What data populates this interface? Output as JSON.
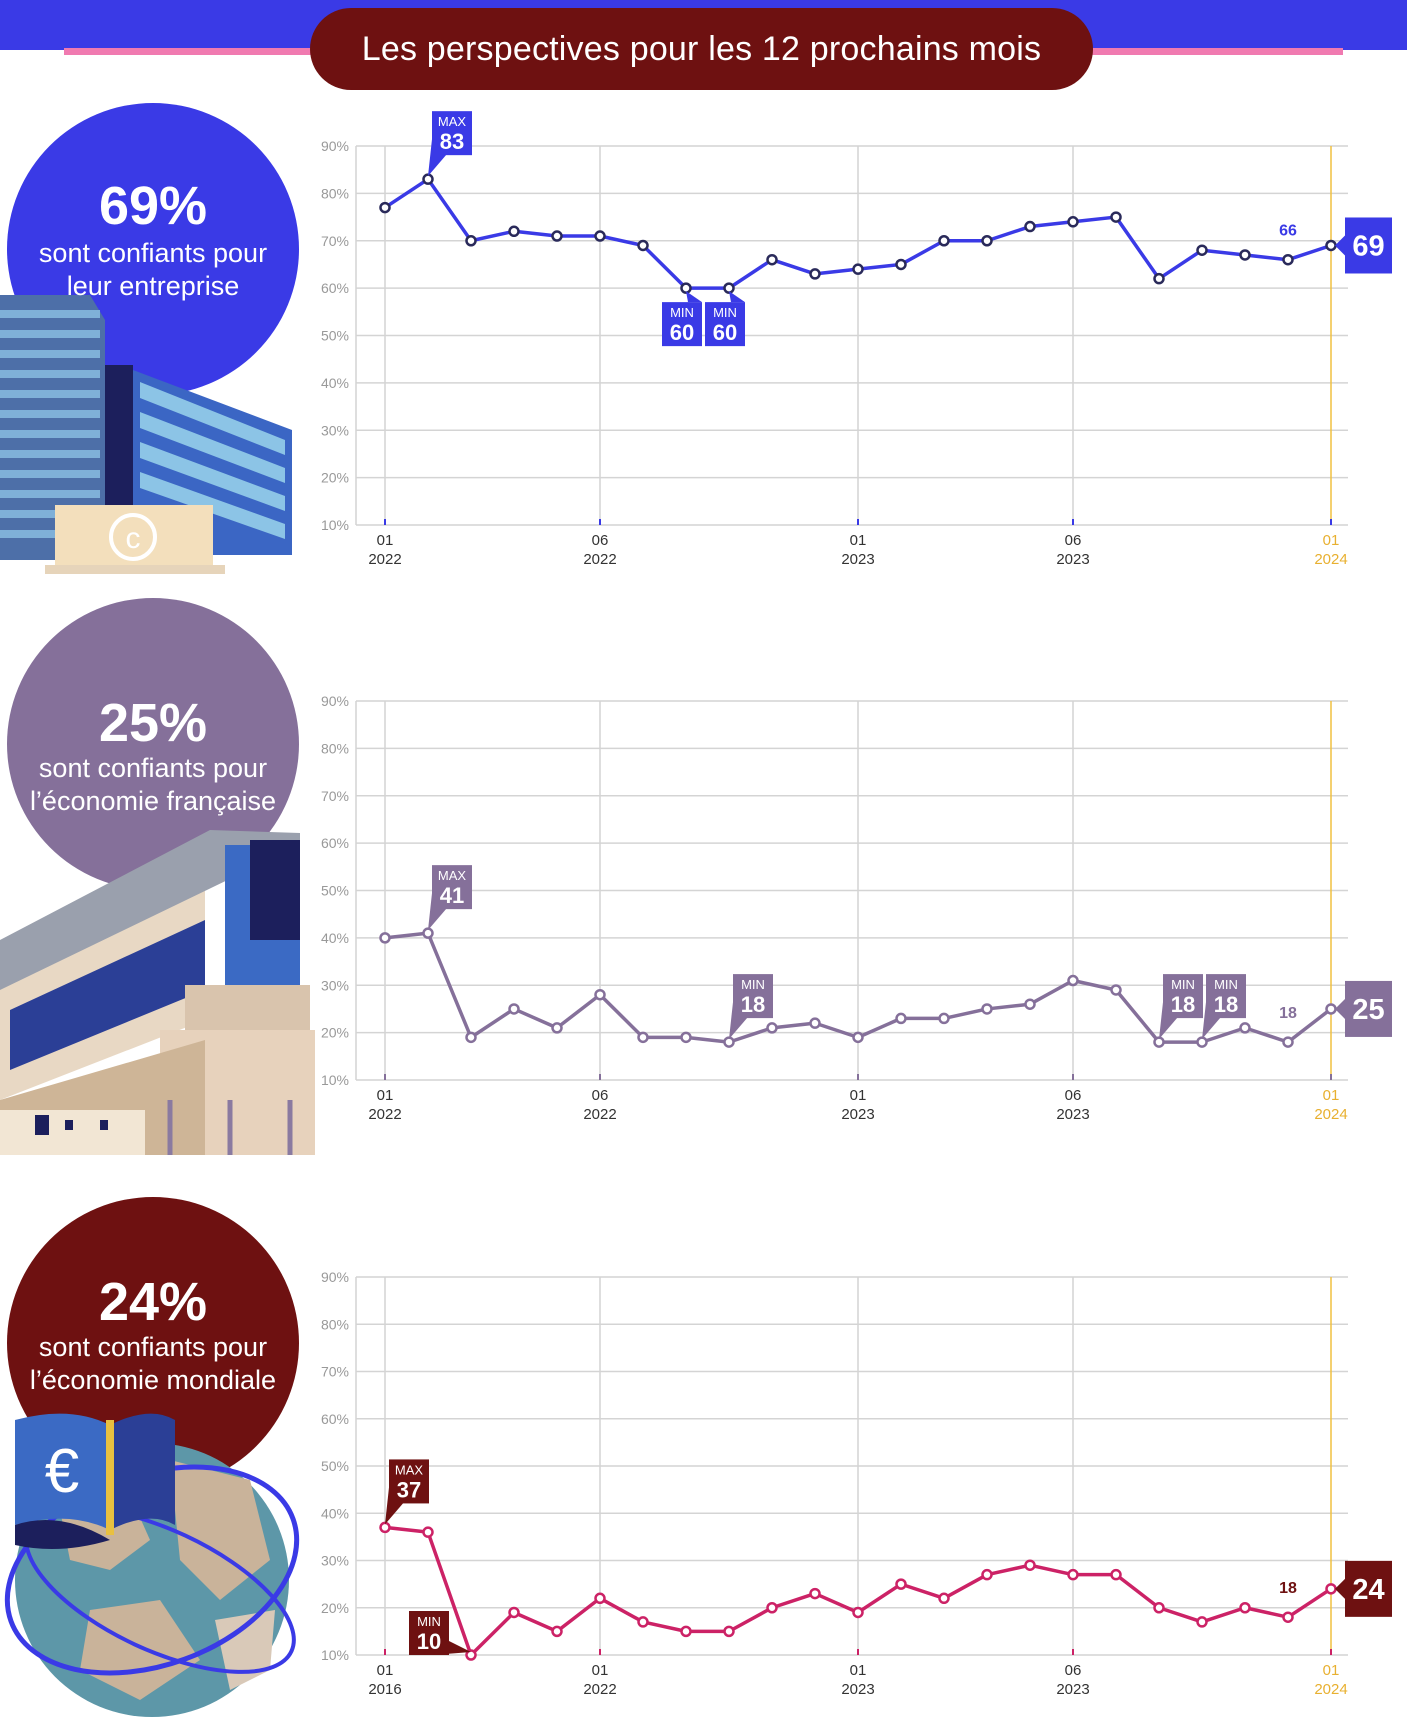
{
  "title": "Les perspectives pour les 12 prochains mois",
  "sections": [
    {
      "pct": "69%",
      "line1": "sont confiants pour",
      "line2": "leur entreprise",
      "color": "#3a3ae6"
    },
    {
      "pct": "25%",
      "line1": "sont confiants pour",
      "line2": "l’économie française",
      "color": "#85709a"
    },
    {
      "pct": "24%",
      "line1": "sont confiants pour",
      "line2": "l’économie mondiale",
      "color": "#6e1111"
    }
  ],
  "chart_data": [
    {
      "type": "line",
      "y_ticks": [
        "90%",
        "80%",
        "70%",
        "60%",
        "50%",
        "40%",
        "30%",
        "20%",
        "10%"
      ],
      "ylim": [
        10,
        90
      ],
      "x_ticks": [
        {
          "index": 0,
          "month": "01",
          "year": "2022"
        },
        {
          "index": 5,
          "month": "06",
          "year": "2022"
        },
        {
          "index": 11,
          "month": "01",
          "year": "2023"
        },
        {
          "index": 16,
          "month": "06",
          "year": "2023"
        },
        {
          "index": 22,
          "month": "01",
          "year": "2024"
        }
      ],
      "values": [
        77,
        83,
        70,
        72,
        71,
        71,
        69,
        60,
        60,
        66,
        63,
        64,
        65,
        70,
        70,
        73,
        74,
        75,
        62,
        68,
        67,
        66,
        69
      ],
      "color": "#3a3ae6",
      "markers": [
        {
          "index": 1,
          "kind": "MAX",
          "value": "83",
          "pos": "above"
        },
        {
          "index": 7,
          "kind": "MIN",
          "value": "60",
          "pos": "below"
        },
        {
          "index": 8,
          "kind": "MIN",
          "value": "60",
          "pos": "below"
        }
      ],
      "prev_label": {
        "index": 21,
        "value": "66"
      },
      "last_label": "69"
    },
    {
      "type": "line",
      "y_ticks": [
        "90%",
        "80%",
        "70%",
        "60%",
        "50%",
        "40%",
        "30%",
        "20%",
        "10%"
      ],
      "ylim": [
        10,
        90
      ],
      "x_ticks": [
        {
          "index": 0,
          "month": "01",
          "year": "2022"
        },
        {
          "index": 5,
          "month": "06",
          "year": "2022"
        },
        {
          "index": 11,
          "month": "01",
          "year": "2023"
        },
        {
          "index": 16,
          "month": "06",
          "year": "2023"
        },
        {
          "index": 22,
          "month": "01",
          "year": "2024"
        }
      ],
      "values": [
        40,
        41,
        19,
        25,
        21,
        28,
        19,
        19,
        18,
        21,
        22,
        19,
        23,
        23,
        25,
        26,
        31,
        29,
        18,
        18,
        21,
        18,
        25
      ],
      "color": "#85709a",
      "markers": [
        {
          "index": 1,
          "kind": "MAX",
          "value": "41",
          "pos": "above"
        },
        {
          "index": 8,
          "kind": "MIN",
          "value": "18",
          "pos": "above"
        },
        {
          "index": 18,
          "kind": "MIN",
          "value": "18",
          "pos": "above"
        },
        {
          "index": 19,
          "kind": "MIN",
          "value": "18",
          "pos": "above"
        }
      ],
      "prev_label": {
        "index": 21,
        "value": "18"
      },
      "last_label": "25"
    },
    {
      "type": "line",
      "y_ticks": [
        "90%",
        "80%",
        "70%",
        "60%",
        "50%",
        "40%",
        "30%",
        "20%",
        "10%"
      ],
      "ylim": [
        10,
        90
      ],
      "x_ticks": [
        {
          "index": 0,
          "month": "01",
          "year": "2016"
        },
        {
          "index": 5,
          "month": "01",
          "year": "2022"
        },
        {
          "index": 11,
          "month": "01",
          "year": "2023"
        },
        {
          "index": 16,
          "month": "06",
          "year": "2023"
        },
        {
          "index": 22,
          "month": "01",
          "year": "2024"
        }
      ],
      "values": [
        37,
        36,
        10,
        19,
        15,
        22,
        17,
        15,
        15,
        20,
        23,
        19,
        25,
        22,
        27,
        29,
        27,
        27,
        20,
        17,
        20,
        18,
        24
      ],
      "color": "#cc2266",
      "label_color": "#6e1111",
      "markers": [
        {
          "index": 0,
          "kind": "MAX",
          "value": "37",
          "pos": "above"
        },
        {
          "index": 2,
          "kind": "MIN",
          "value": "10",
          "pos": "above-left"
        }
      ],
      "prev_label": {
        "index": 21,
        "value": "18"
      },
      "last_label": "24"
    }
  ]
}
